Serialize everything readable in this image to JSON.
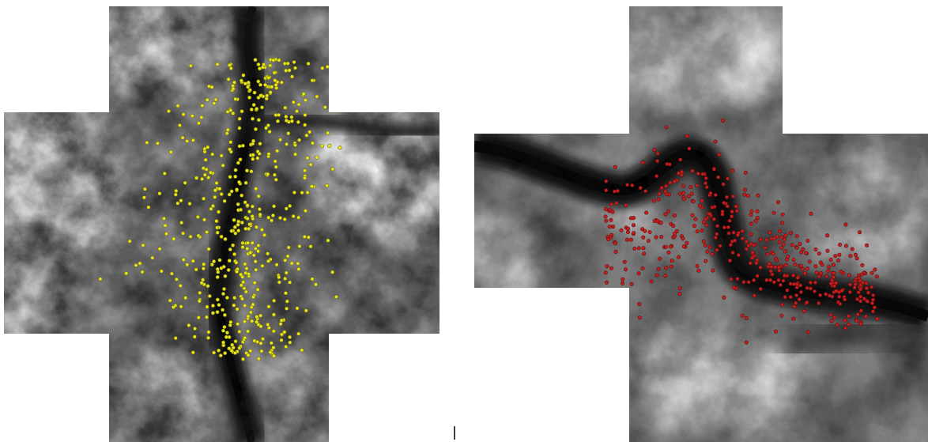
{
  "panels": [
    {
      "name": "left-panel",
      "point_color": "#e8e61a",
      "point_stroke": "#6b6a10",
      "point_count": 520
    },
    {
      "name": "right-panel",
      "point_color": "#c41e1e",
      "point_stroke": "#5a0b0b",
      "point_count": 470
    }
  ],
  "colors": {
    "dem_high": "#ffffff",
    "dem_low": "#0a0a0a",
    "background": "#ffffff"
  }
}
